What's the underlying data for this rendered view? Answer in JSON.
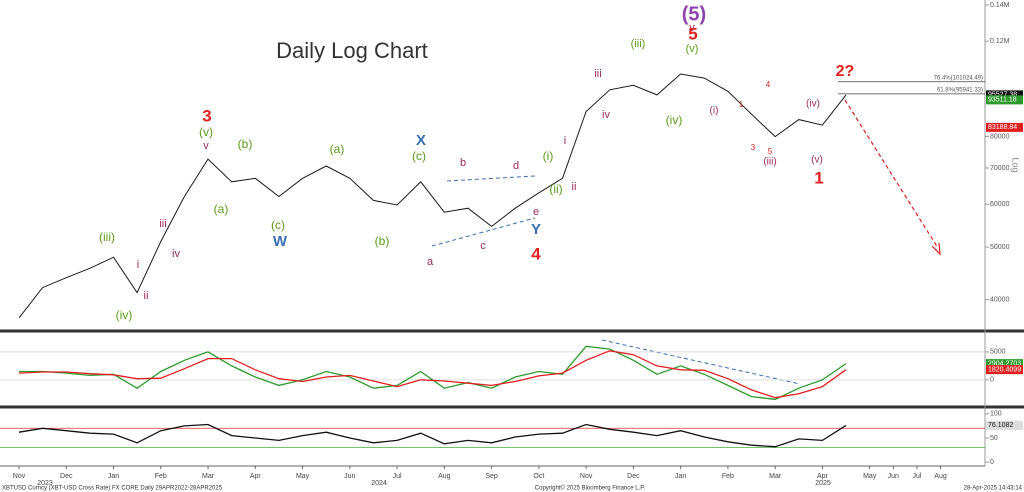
{
  "chart_data": [
    {
      "type": "line",
      "title": "Daily Log Chart",
      "yscale": "log",
      "axis_label": "Log",
      "categories": [
        "Nov",
        null,
        "Dec",
        null,
        "Jan",
        null,
        "Feb",
        null,
        "Mar",
        null,
        "Apr",
        null,
        "May",
        null,
        "Jun",
        null,
        "Jul",
        null,
        "Aug",
        null,
        "Sep",
        null,
        "Oct",
        null,
        "Nov",
        null,
        "Dec",
        null,
        "Jan",
        null,
        "Feb",
        null,
        "Mar",
        null,
        "Apr",
        null,
        "May",
        "Jun",
        "Jul",
        "Aug"
      ],
      "years": [
        "2023",
        "2024",
        "2025"
      ],
      "values": [
        37000,
        42100,
        43900,
        45700,
        47900,
        41200,
        51200,
        62000,
        72700,
        66000,
        67000,
        62000,
        67000,
        70600,
        67000,
        61000,
        59800,
        66000,
        58000,
        59000,
        54600,
        59000,
        63000,
        67000,
        89000,
        97600,
        99500,
        95500,
        104400,
        102600,
        97000,
        88000,
        80000,
        86000,
        84000,
        95527.38,
        null,
        null,
        null,
        null
      ],
      "color": "#1a1a1a",
      "ylim": [
        35000,
        143000
      ],
      "yticks": [
        40000,
        50000,
        60000,
        70000,
        80000,
        {
          "value": 120000,
          "label": "0.12M"
        },
        {
          "value": 140000,
          "label": "0.14M"
        }
      ],
      "price_labels": [
        {
          "value": 93511.18,
          "color": "#2e9a2e"
        },
        {
          "value": 83188.84,
          "color": "#e02020"
        }
      ],
      "fib_levels": [
        {
          "value": 101024.49,
          "label": "76.4%(101024.49)"
        },
        {
          "value": 95941.33,
          "label": "61.8%(95941.33)"
        }
      ],
      "annotations": [
        {
          "text": "3",
          "color": "#e02020"
        },
        {
          "text": "(v)",
          "color": "#5a9a1a"
        },
        {
          "text": "v",
          "color": "#9b2a5a"
        },
        {
          "text": "(b)",
          "color": "#5a9a1a"
        },
        {
          "text": "(a)",
          "color": "#5a9a1a"
        },
        {
          "text": "(c)",
          "color": "#5a9a1a"
        },
        {
          "text": "W",
          "color": "#3a6fb0"
        },
        {
          "text": "(iii)",
          "color": "#5a9a1a"
        },
        {
          "text": "i",
          "color": "#9b2a5a"
        },
        {
          "text": "ii",
          "color": "#9b2a5a"
        },
        {
          "text": "iii",
          "color": "#9b2a5a"
        },
        {
          "text": "iv",
          "color": "#9b2a5a"
        },
        {
          "text": "(iv)",
          "color": "#5a9a1a"
        },
        {
          "text": "(a)",
          "color": "#5a9a1a"
        },
        {
          "text": "(b)",
          "color": "#5a9a1a"
        },
        {
          "text": "X",
          "color": "#3a6fb0"
        },
        {
          "text": "(c)",
          "color": "#5a9a1a"
        },
        {
          "text": "a",
          "color": "#9b2a5a"
        },
        {
          "text": "b",
          "color": "#9b2a5a"
        },
        {
          "text": "c",
          "color": "#9b2a5a"
        },
        {
          "text": "d",
          "color": "#9b2a5a"
        },
        {
          "text": "e",
          "color": "#9b2a5a"
        },
        {
          "text": "Y",
          "color": "#3a6fb0"
        },
        {
          "text": "4",
          "color": "#e02020"
        },
        {
          "text": "(i)",
          "color": "#5a9a1a"
        },
        {
          "text": "(ii)",
          "color": "#5a9a1a"
        },
        {
          "text": "i",
          "color": "#9b2a5a"
        },
        {
          "text": "ii",
          "color": "#9b2a5a"
        },
        {
          "text": "iii",
          "color": "#9b2a5a"
        },
        {
          "text": "iv",
          "color": "#9b2a5a"
        },
        {
          "text": "(iii)",
          "color": "#5a9a1a"
        },
        {
          "text": "(iv)",
          "color": "#5a9a1a"
        },
        {
          "text": "v",
          "color": "#9b2a5a"
        },
        {
          "text": "(v)",
          "color": "#5a9a1a"
        },
        {
          "text": "(5)",
          "color": "#8e44ad"
        },
        {
          "text": "5",
          "color": "#e02020"
        },
        {
          "text": "(i)",
          "color": "#9b2a5a"
        },
        {
          "text": "1",
          "color": "#e02020"
        },
        {
          "text": "3",
          "color": "#e02020"
        },
        {
          "text": "5",
          "color": "#e02020"
        },
        {
          "text": "(iii)",
          "color": "#9b2a5a"
        },
        {
          "text": "4",
          "color": "#e02020"
        },
        {
          "text": "(iv)",
          "color": "#9b2a5a"
        },
        {
          "text": "(v)",
          "color": "#9b2a5a"
        },
        {
          "text": "1",
          "color": "#e02020"
        },
        {
          "text": "2?",
          "color": "#e02020"
        }
      ]
    },
    {
      "type": "line",
      "series": [
        {
          "color": "#2e9a2e",
          "values": [
            1500,
            1500,
            1200,
            800,
            1000,
            -1500,
            1500,
            3500,
            5000,
            2500,
            500,
            -1000,
            0,
            1500,
            500,
            -1500,
            -1000,
            1500,
            -1500,
            -500,
            -1500,
            500,
            1500,
            1000,
            6000,
            5500,
            3500,
            1000,
            2500,
            1000,
            -1000,
            -3000,
            -3500,
            -1500,
            0,
            2904.2703,
            null,
            null,
            null,
            null
          ]
        },
        {
          "color": "#e02020",
          "values": [
            1200,
            1400,
            1400,
            1100,
            900,
            200,
            300,
            2000,
            3800,
            3800,
            1800,
            200,
            -300,
            500,
            800,
            -200,
            -1200,
            0,
            -200,
            -600,
            -1000,
            -300,
            700,
            1200,
            3500,
            5200,
            4500,
            2500,
            1800,
            1700,
            200,
            -1800,
            -3200,
            -2500,
            -1200,
            1820.4099,
            null,
            null,
            null,
            null
          ]
        }
      ],
      "ylim": [
        -4500,
        8200
      ],
      "yticks": [
        0,
        5000
      ]
    },
    {
      "type": "line",
      "values": [
        62,
        70,
        65,
        60,
        58,
        40,
        65,
        75,
        78,
        55,
        50,
        45,
        55,
        62,
        50,
        40,
        45,
        60,
        38,
        45,
        40,
        52,
        58,
        60,
        78,
        68,
        62,
        55,
        65,
        52,
        42,
        35,
        32,
        48,
        45,
        76.1082,
        null,
        null,
        null,
        null
      ],
      "color": "#111111",
      "levels": [
        {
          "value": 70,
          "color": "#e05050"
        },
        {
          "value": 30,
          "color": "#40b040"
        }
      ],
      "ylim": [
        -8,
        110
      ],
      "yticks": [
        0,
        50,
        100
      ]
    }
  ],
  "footer": {
    "left": "XBTUSD Curncy (XBT-USD Cross Rate) FX CORE  Daily 29APR2022-28APR2025",
    "center": "Copyright© 2025 Bloomberg Finance L.P.",
    "right": "28-Apr-2025 14:43:14"
  }
}
